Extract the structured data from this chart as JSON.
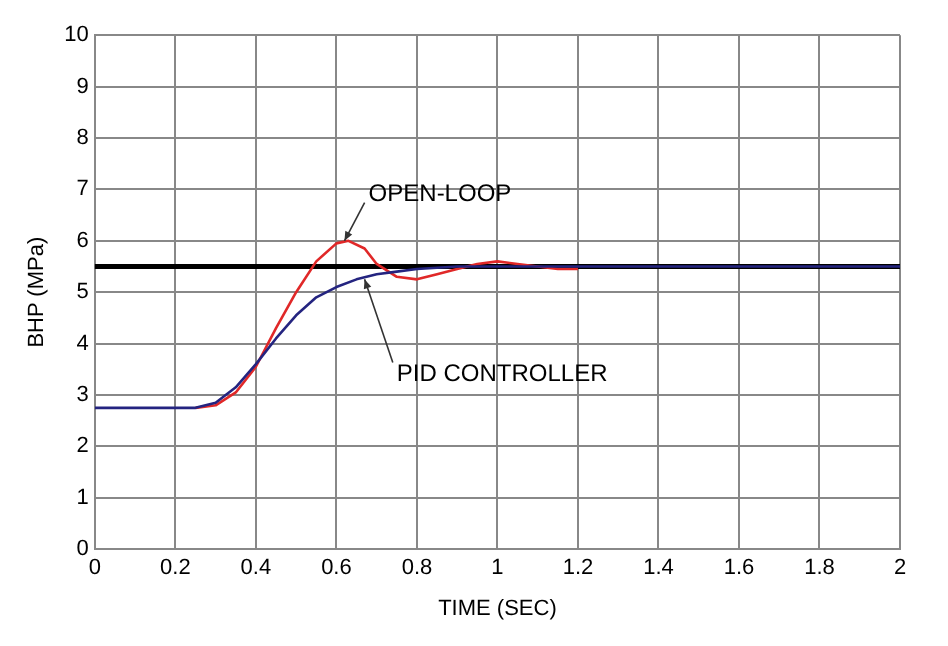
{
  "chart_data": {
    "type": "line",
    "xlabel": "TIME (SEC)",
    "ylabel": "BHP (MPa)",
    "xlim": [
      0,
      2
    ],
    "xticks": [
      0,
      0.2,
      0.4,
      0.6,
      0.8,
      1,
      1.2,
      1.4,
      1.6,
      1.8,
      2
    ],
    "ylim": [
      0,
      10
    ],
    "yticks": [
      0,
      1,
      2,
      3,
      4,
      5,
      6,
      7,
      8,
      9,
      10
    ],
    "grid": true,
    "legend": false,
    "marker": "none",
    "line_style": "solid",
    "series": [
      {
        "color": "#e02828",
        "x": [
          0.25,
          0.3,
          0.35,
          0.4,
          0.45,
          0.5,
          0.55,
          0.6,
          0.63,
          0.67,
          0.7,
          0.75,
          0.8,
          0.85,
          0.9,
          0.95,
          1,
          1.05,
          1.1,
          1.15,
          1.2
        ],
        "values": [
          2.75,
          2.8,
          3.05,
          3.55,
          4.3,
          5.0,
          5.6,
          5.95,
          6.0,
          5.85,
          5.55,
          5.3,
          5.25,
          5.35,
          5.45,
          5.55,
          5.6,
          5.55,
          5.5,
          5.45,
          5.45
        ]
      },
      {
        "color": "#242480",
        "x": [
          0,
          0.25,
          0.3,
          0.35,
          0.4,
          0.45,
          0.5,
          0.55,
          0.6,
          0.65,
          0.7,
          0.75,
          0.8,
          0.9,
          1,
          1.2,
          1.5,
          2
        ],
        "values": [
          2.75,
          2.75,
          2.85,
          3.15,
          3.6,
          4.1,
          4.55,
          4.9,
          5.1,
          5.25,
          5.35,
          5.4,
          5.45,
          5.5,
          5.5,
          5.5,
          5.5,
          5.5
        ]
      }
    ],
    "ref_lines": [
      {
        "axis": "y",
        "value": 5.5,
        "color": "#000000"
      }
    ],
    "annotations": [
      {
        "text": "OPEN-LOOP",
        "x": 0.62,
        "y": 6.0
      },
      {
        "text": "PID CONTROLLER",
        "x": 0.67,
        "y": 5.25
      }
    ]
  }
}
